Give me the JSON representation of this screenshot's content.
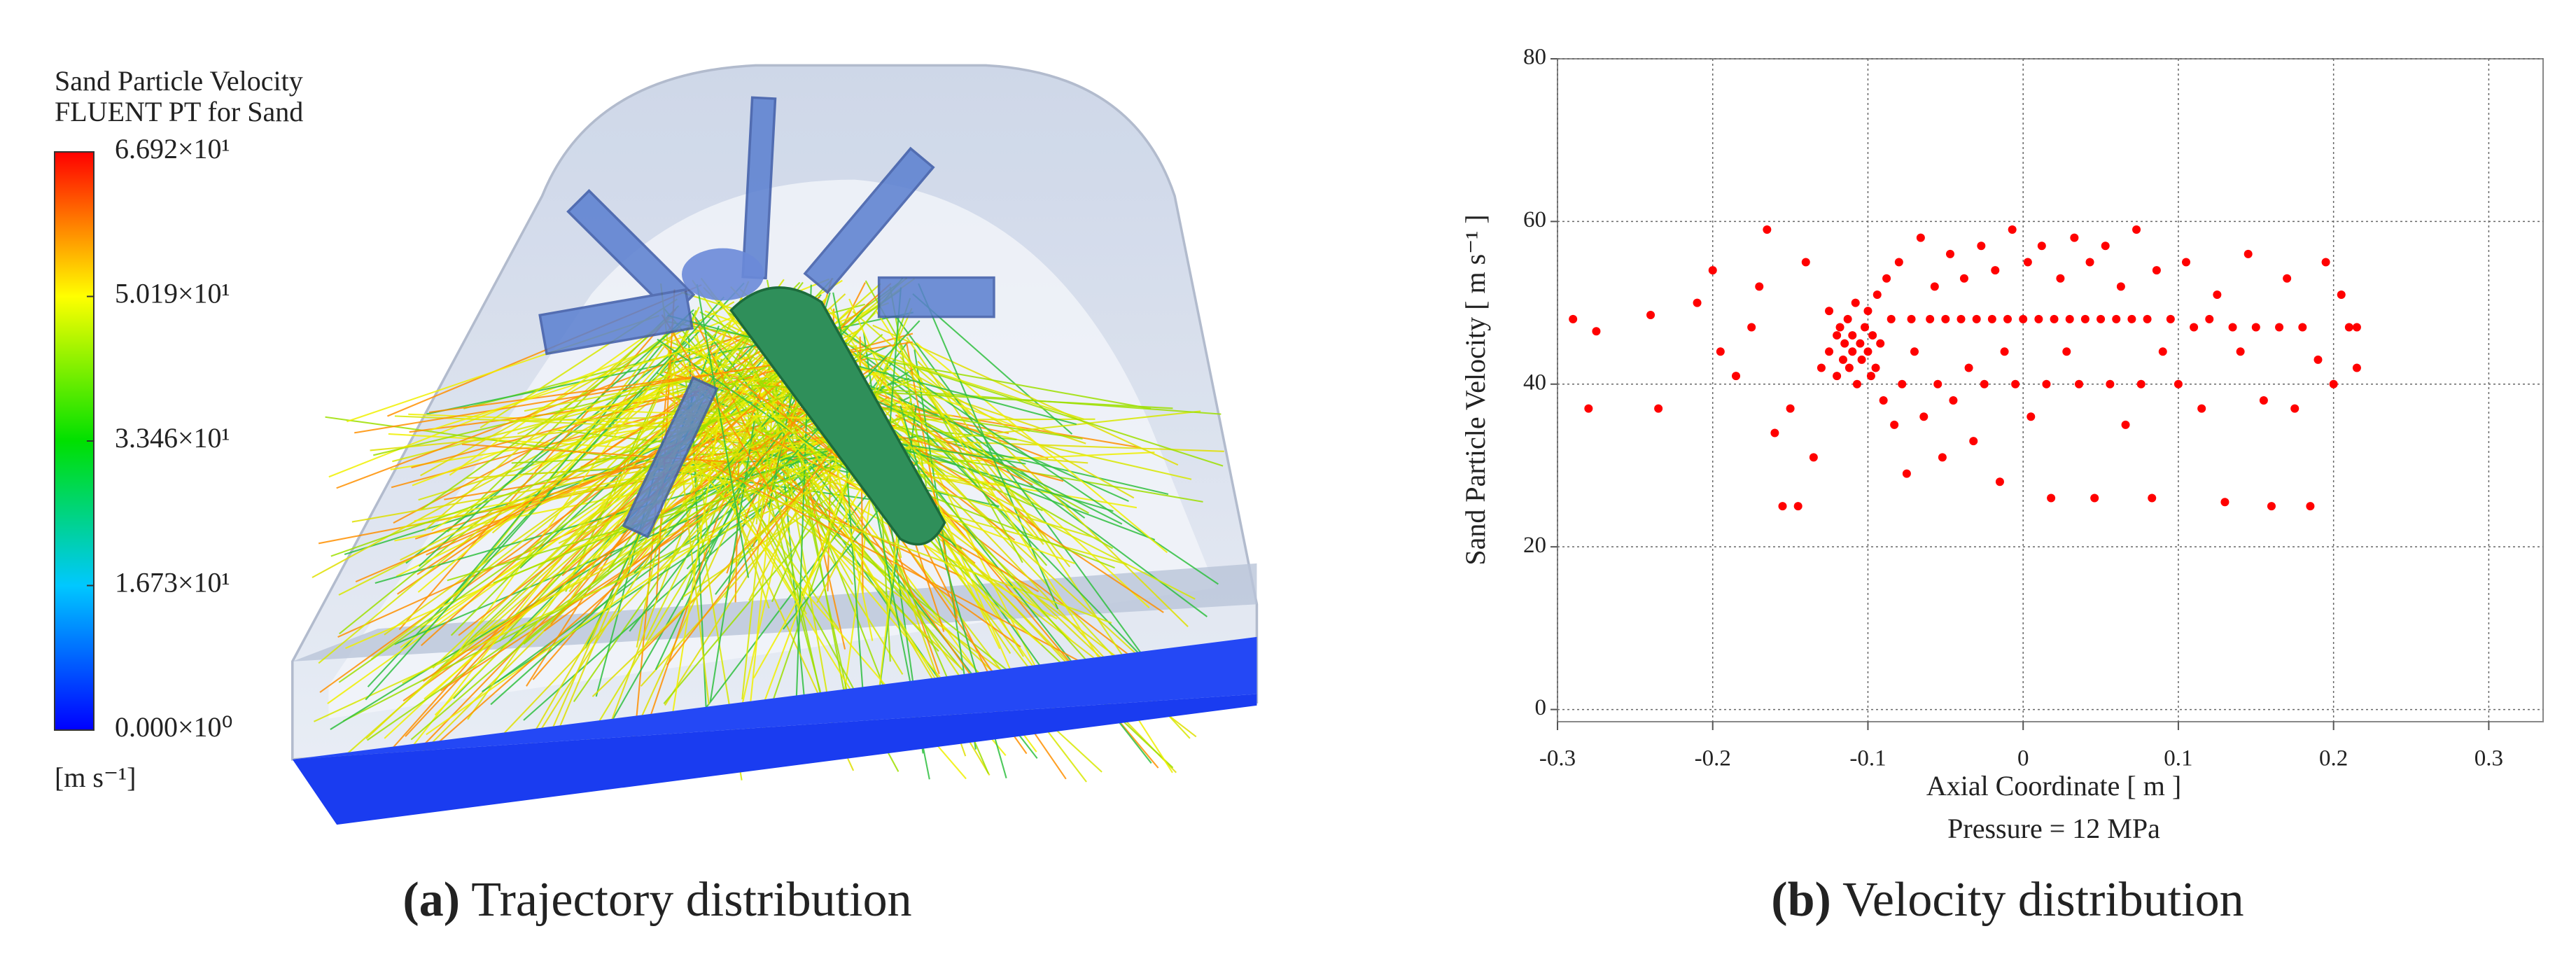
{
  "chart_data": [
    {
      "type": "colorbar",
      "title": [
        "Sand Particle Velocity",
        "FLUENT PT for Sand"
      ],
      "unit": "[m s⁻¹]",
      "clim": [
        0,
        66.92
      ],
      "colors": [
        "#0000ff",
        "#00c8ff",
        "#00e000",
        "#ffff00",
        "#ff0000"
      ],
      "ticks": [
        {
          "value": 0,
          "label": "0.000×10⁰"
        },
        {
          "value": 16.73,
          "label": "1.673×10¹"
        },
        {
          "value": 33.46,
          "label": "3.346×10¹"
        },
        {
          "value": 50.19,
          "label": "5.019×10¹"
        },
        {
          "value": 66.92,
          "label": "6.692×10¹"
        }
      ],
      "caption_tag": "(a)",
      "caption": "Trajectory distribution"
    },
    {
      "type": "scatter",
      "xlabel": "Axial Coordinate [ m ]",
      "ylabel": "Sand Particle Velocity [ m s⁻¹ ]",
      "annotation": "Pressure = 12 MPa",
      "caption_tag": "(b)",
      "caption": "Velocity distribution",
      "color": "#ff0000",
      "grid": true,
      "xlim": [
        -0.3,
        0.335
      ],
      "ylim": [
        -1.5,
        80
      ],
      "xticks": [
        -0.3,
        -0.2,
        -0.1,
        0,
        0.1,
        0.2,
        0.3
      ],
      "yticks": [
        0,
        20,
        40,
        60,
        80
      ],
      "x": [
        -0.29,
        -0.28,
        -0.275,
        -0.24,
        -0.235,
        -0.21,
        -0.2,
        -0.195,
        -0.185,
        -0.175,
        -0.17,
        -0.165,
        -0.16,
        -0.155,
        -0.15,
        -0.145,
        -0.14,
        -0.135,
        -0.13,
        -0.125,
        -0.125,
        -0.12,
        -0.12,
        -0.118,
        -0.116,
        -0.115,
        -0.113,
        -0.112,
        -0.11,
        -0.11,
        -0.108,
        -0.107,
        -0.105,
        -0.104,
        -0.102,
        -0.1,
        -0.1,
        -0.098,
        -0.097,
        -0.095,
        -0.094,
        -0.092,
        -0.09,
        -0.088,
        -0.085,
        -0.083,
        -0.08,
        -0.078,
        -0.075,
        -0.072,
        -0.07,
        -0.066,
        -0.064,
        -0.06,
        -0.057,
        -0.055,
        -0.052,
        -0.05,
        -0.047,
        -0.045,
        -0.04,
        -0.038,
        -0.035,
        -0.032,
        -0.03,
        -0.027,
        -0.025,
        -0.02,
        -0.018,
        -0.015,
        -0.012,
        -0.01,
        -0.007,
        -0.005,
        0,
        0.003,
        0.005,
        0.01,
        0.012,
        0.015,
        0.018,
        0.02,
        0.024,
        0.028,
        0.03,
        0.033,
        0.036,
        0.04,
        0.043,
        0.046,
        0.05,
        0.053,
        0.056,
        0.06,
        0.063,
        0.066,
        0.07,
        0.073,
        0.076,
        0.08,
        0.083,
        0.086,
        0.09,
        0.095,
        0.1,
        0.105,
        0.11,
        0.115,
        0.12,
        0.125,
        0.13,
        0.135,
        0.14,
        0.145,
        0.15,
        0.155,
        0.16,
        0.165,
        0.17,
        0.175,
        0.18,
        0.185,
        0.19,
        0.195,
        0.2,
        0.205,
        0.21,
        0.215,
        0.215
      ],
      "values": [
        48,
        37,
        46.5,
        48.5,
        37,
        50,
        54,
        44,
        41,
        47,
        52,
        59,
        34,
        25,
        37,
        25,
        55,
        31,
        42,
        49,
        44,
        46,
        41,
        47,
        43,
        45,
        48,
        42,
        44,
        46,
        50,
        40,
        45,
        43,
        47,
        44,
        49,
        41,
        46,
        42,
        51,
        45,
        38,
        53,
        48,
        35,
        55,
        40,
        29,
        48,
        44,
        58,
        36,
        48,
        52,
        40,
        31,
        48,
        56,
        38,
        48,
        53,
        42,
        33,
        48,
        57,
        40,
        48,
        54,
        28,
        44,
        48,
        59,
        40,
        48,
        55,
        36,
        48,
        57,
        40,
        26,
        48,
        53,
        44,
        48,
        58,
        40,
        48,
        55,
        26,
        48,
        57,
        40,
        48,
        52,
        35,
        48,
        59,
        40,
        48,
        26,
        54,
        44,
        48,
        40,
        55,
        47,
        37,
        48,
        51,
        25.5,
        47,
        44,
        56,
        47,
        38,
        25,
        47,
        53,
        37,
        47,
        25,
        43,
        55,
        40,
        51,
        47,
        42,
        47
      ]
    }
  ]
}
